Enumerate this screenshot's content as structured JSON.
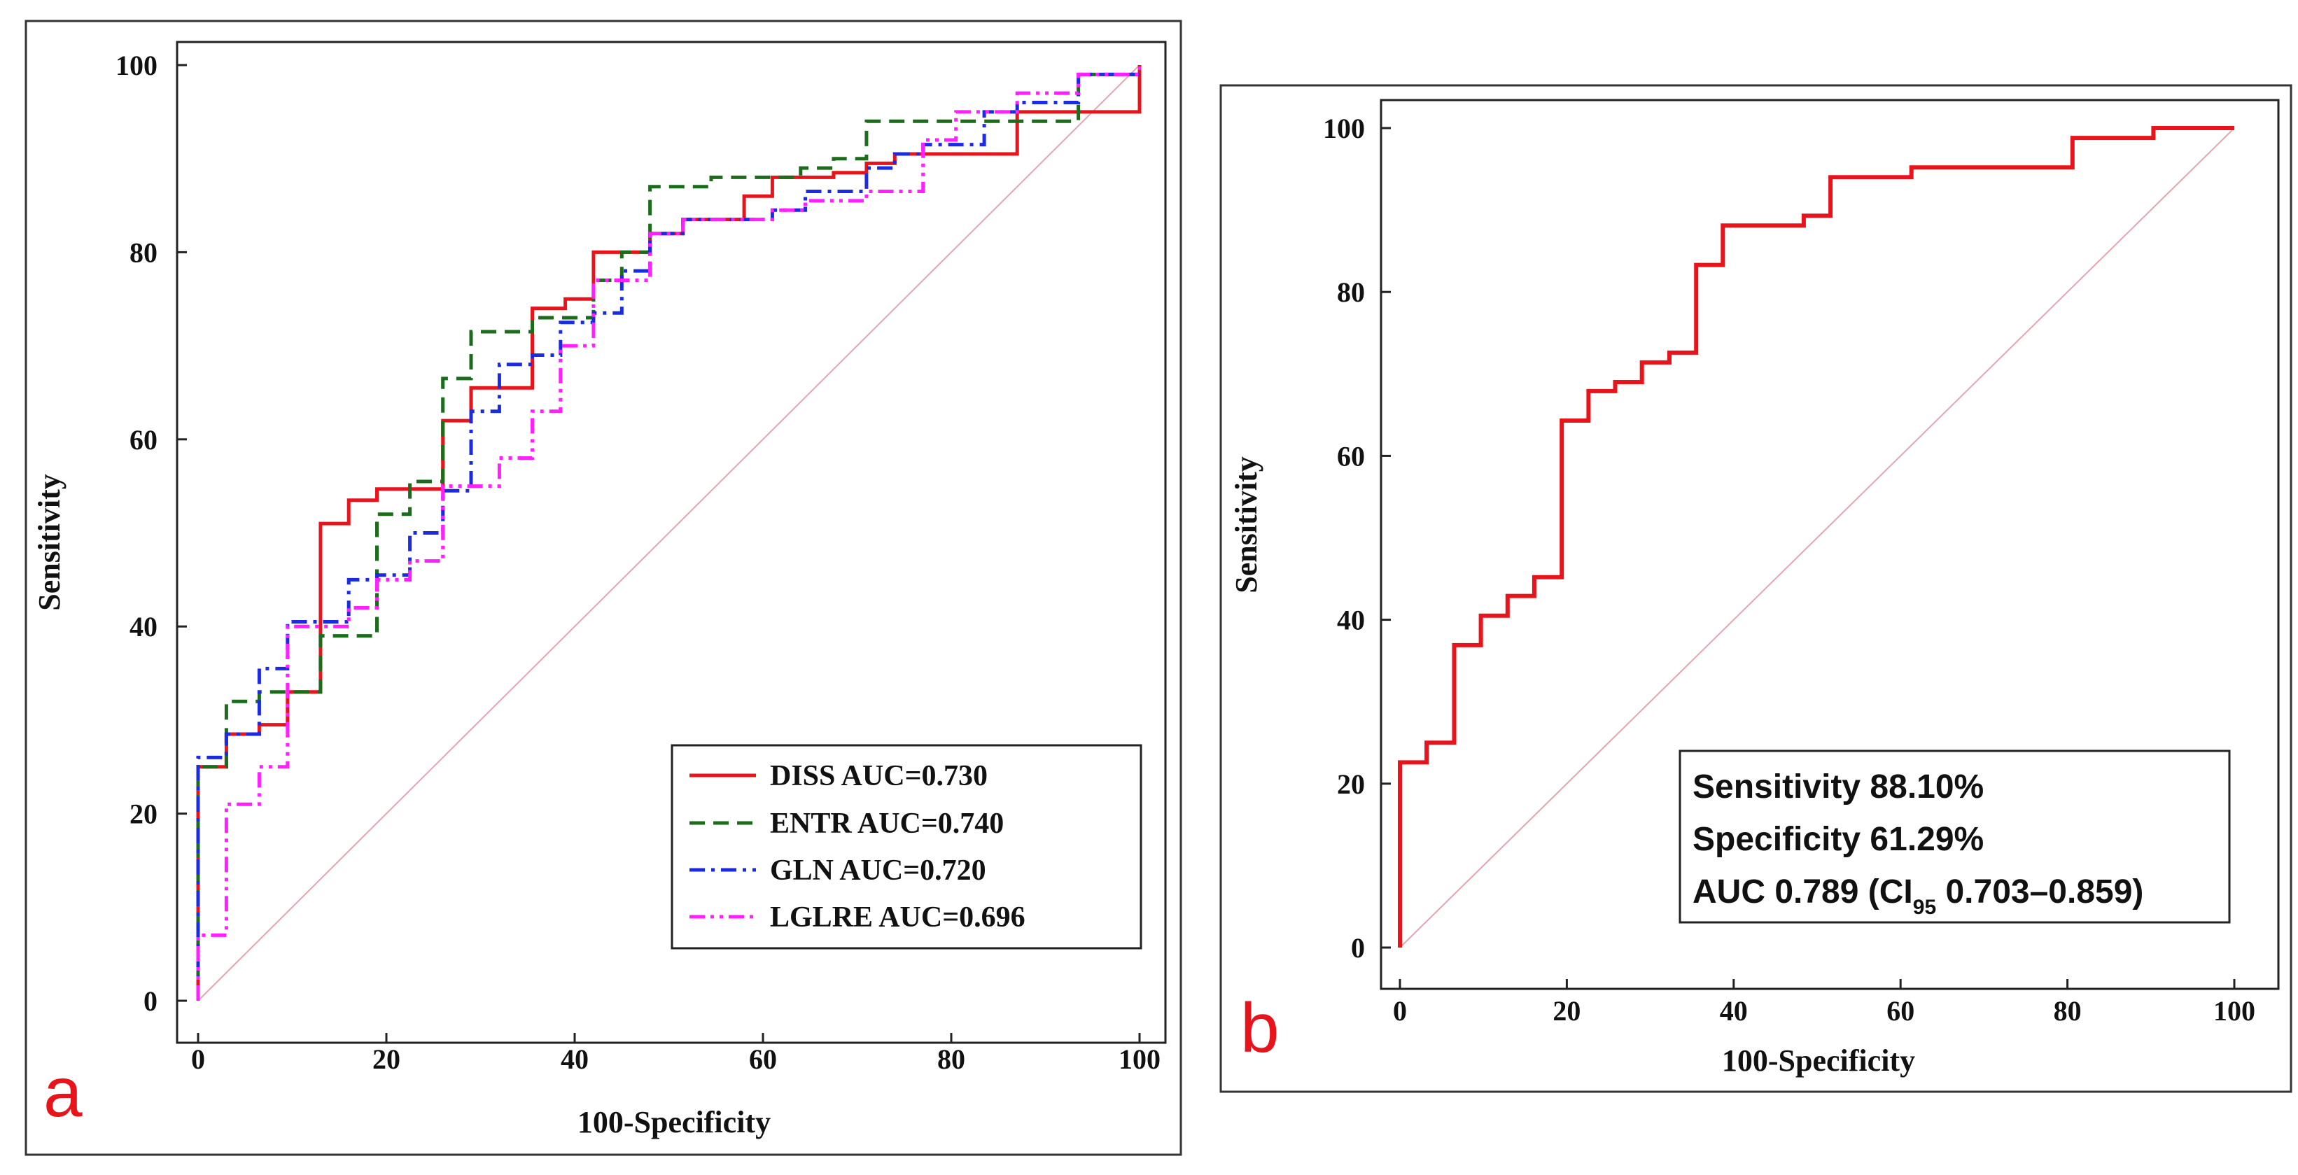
{
  "colors": {
    "diss": "#e8141b",
    "entr": "#1d6b1d",
    "gln": "#1a2be0",
    "lglre": "#ff1fff",
    "diagonal": "#e3a5b0",
    "panel_letter": "#e8141b"
  },
  "chart_data": [
    {
      "panel": "a",
      "type": "line",
      "xlabel": "100-Specificity",
      "ylabel": "Sensitivity",
      "xlim": [
        0,
        100
      ],
      "ylim": [
        0,
        100
      ],
      "xticks": [
        "0",
        "20",
        "40",
        "60",
        "80",
        "100"
      ],
      "yticks": [
        "0",
        "20",
        "40",
        "60",
        "80",
        "100"
      ],
      "legend_position": "lower-right",
      "series": [
        {
          "name": "DISS AUC=0.730",
          "style": "solid",
          "color_key": "diss",
          "points": [
            [
              0,
              0
            ],
            [
              0,
              25
            ],
            [
              3,
              25
            ],
            [
              3,
              28.5
            ],
            [
              6.5,
              28.5
            ],
            [
              6.5,
              29.5
            ],
            [
              9.5,
              29.5
            ],
            [
              9.5,
              33
            ],
            [
              13,
              33
            ],
            [
              13,
              51
            ],
            [
              16,
              51
            ],
            [
              16,
              53.5
            ],
            [
              19,
              53.5
            ],
            [
              19,
              54.7
            ],
            [
              26,
              54.7
            ],
            [
              26,
              62
            ],
            [
              29,
              62
            ],
            [
              29,
              65.5
            ],
            [
              35.5,
              65.5
            ],
            [
              35.5,
              74
            ],
            [
              39,
              74
            ],
            [
              39,
              75
            ],
            [
              42,
              75
            ],
            [
              42,
              80
            ],
            [
              48,
              80
            ],
            [
              48,
              82
            ],
            [
              51.5,
              82
            ],
            [
              51.5,
              83.5
            ],
            [
              58,
              83.5
            ],
            [
              58,
              86
            ],
            [
              61,
              86
            ],
            [
              61,
              88
            ],
            [
              67.5,
              88
            ],
            [
              67.5,
              88.5
            ],
            [
              71,
              88.5
            ],
            [
              71,
              89.5
            ],
            [
              74,
              89.5
            ],
            [
              74,
              90.5
            ],
            [
              87,
              90.5
            ],
            [
              87,
              95
            ],
            [
              100,
              95
            ],
            [
              100,
              100
            ]
          ]
        },
        {
          "name": "ENTR AUC=0.740",
          "style": "dashed",
          "color_key": "entr",
          "points": [
            [
              0,
              0
            ],
            [
              0,
              25
            ],
            [
              3,
              25
            ],
            [
              3,
              32
            ],
            [
              6.5,
              32
            ],
            [
              6.5,
              33
            ],
            [
              13,
              33
            ],
            [
              13,
              39
            ],
            [
              19,
              39
            ],
            [
              19,
              52
            ],
            [
              22.5,
              52
            ],
            [
              22.5,
              55.5
            ],
            [
              26,
              55.5
            ],
            [
              26,
              66.5
            ],
            [
              29,
              66.5
            ],
            [
              29,
              71.5
            ],
            [
              35.5,
              71.5
            ],
            [
              35.5,
              73
            ],
            [
              42,
              73
            ],
            [
              42,
              77
            ],
            [
              45,
              77
            ],
            [
              45,
              80
            ],
            [
              48,
              80
            ],
            [
              48,
              87
            ],
            [
              54.5,
              87
            ],
            [
              54.5,
              88
            ],
            [
              64,
              88
            ],
            [
              64,
              89
            ],
            [
              67.5,
              89
            ],
            [
              67.5,
              90
            ],
            [
              71,
              90
            ],
            [
              71,
              94
            ],
            [
              93.5,
              94
            ],
            [
              93.5,
              99
            ],
            [
              100,
              99
            ]
          ]
        },
        {
          "name": "GLN AUC=0.720",
          "style": "dashdot",
          "color_key": "gln",
          "points": [
            [
              0,
              0
            ],
            [
              0,
              26
            ],
            [
              3,
              26
            ],
            [
              3,
              28.5
            ],
            [
              6.5,
              28.5
            ],
            [
              6.5,
              35.5
            ],
            [
              9.5,
              35.5
            ],
            [
              9.5,
              40.5
            ],
            [
              16,
              40.5
            ],
            [
              16,
              45
            ],
            [
              19,
              45
            ],
            [
              19,
              45.5
            ],
            [
              22.5,
              45.5
            ],
            [
              22.5,
              50
            ],
            [
              26,
              50
            ],
            [
              26,
              54.5
            ],
            [
              29,
              54.5
            ],
            [
              29,
              63
            ],
            [
              32,
              63
            ],
            [
              32,
              68
            ],
            [
              35.5,
              68
            ],
            [
              35.5,
              69
            ],
            [
              38.5,
              69
            ],
            [
              38.5,
              72.5
            ],
            [
              42,
              72.5
            ],
            [
              42,
              73.5
            ],
            [
              45,
              73.5
            ],
            [
              45,
              78
            ],
            [
              48,
              78
            ],
            [
              48,
              82
            ],
            [
              51.5,
              82
            ],
            [
              51.5,
              83.5
            ],
            [
              61,
              83.5
            ],
            [
              61,
              84.5
            ],
            [
              64.5,
              84.5
            ],
            [
              64.5,
              86.5
            ],
            [
              71,
              86.5
            ],
            [
              71,
              89
            ],
            [
              74,
              89
            ],
            [
              74,
              90.5
            ],
            [
              77,
              90.5
            ],
            [
              77,
              91.5
            ],
            [
              83.5,
              91.5
            ],
            [
              83.5,
              95
            ],
            [
              87,
              95
            ],
            [
              87,
              96
            ],
            [
              93.5,
              96
            ],
            [
              93.5,
              99
            ],
            [
              100,
              99
            ]
          ]
        },
        {
          "name": "LGLRE AUC=0.696",
          "style": "dashdotdot",
          "color_key": "lglre",
          "points": [
            [
              0,
              0
            ],
            [
              0,
              7
            ],
            [
              3,
              7
            ],
            [
              3,
              21
            ],
            [
              6.5,
              21
            ],
            [
              6.5,
              25
            ],
            [
              9.5,
              25
            ],
            [
              9.5,
              40
            ],
            [
              16,
              40
            ],
            [
              16,
              42
            ],
            [
              19,
              42
            ],
            [
              19,
              45
            ],
            [
              22.5,
              45
            ],
            [
              22.5,
              47
            ],
            [
              26,
              47
            ],
            [
              26,
              55
            ],
            [
              32,
              55
            ],
            [
              32,
              58
            ],
            [
              35.5,
              58
            ],
            [
              35.5,
              63
            ],
            [
              38.5,
              63
            ],
            [
              38.5,
              70
            ],
            [
              42,
              70
            ],
            [
              42,
              77
            ],
            [
              48,
              77
            ],
            [
              48,
              82
            ],
            [
              51.5,
              82
            ],
            [
              51.5,
              83.5
            ],
            [
              61,
              83.5
            ],
            [
              61,
              84.5
            ],
            [
              64.5,
              84.5
            ],
            [
              64.5,
              85.5
            ],
            [
              71,
              85.5
            ],
            [
              71,
              86.5
            ],
            [
              77,
              86.5
            ],
            [
              77,
              92
            ],
            [
              80.5,
              92
            ],
            [
              80.5,
              95
            ],
            [
              87,
              95
            ],
            [
              87,
              97
            ],
            [
              93.5,
              97
            ],
            [
              93.5,
              99
            ],
            [
              100,
              99
            ],
            [
              100,
              100
            ]
          ]
        }
      ]
    },
    {
      "panel": "b",
      "type": "line",
      "xlabel": "100-Specificity",
      "ylabel": "Sensitivity",
      "xlim": [
        0,
        100
      ],
      "ylim": [
        0,
        100
      ],
      "xticks": [
        "0",
        "20",
        "40",
        "60",
        "80",
        "100"
      ],
      "yticks": [
        "0",
        "20",
        "40",
        "60",
        "80",
        "100"
      ],
      "series": [
        {
          "name": "ROC",
          "style": "solid",
          "color_key": "diss",
          "points": [
            [
              0,
              0
            ],
            [
              0,
              22.6
            ],
            [
              3.2,
              22.6
            ],
            [
              3.2,
              25
            ],
            [
              6.5,
              25
            ],
            [
              6.5,
              36.9
            ],
            [
              9.7,
              36.9
            ],
            [
              9.7,
              40.5
            ],
            [
              12.9,
              40.5
            ],
            [
              12.9,
              42.9
            ],
            [
              16.1,
              42.9
            ],
            [
              16.1,
              45.2
            ],
            [
              19.4,
              45.2
            ],
            [
              19.4,
              64.3
            ],
            [
              22.6,
              64.3
            ],
            [
              22.6,
              67.9
            ],
            [
              25.8,
              67.9
            ],
            [
              25.8,
              69
            ],
            [
              29,
              69
            ],
            [
              29,
              71.4
            ],
            [
              32.3,
              71.4
            ],
            [
              32.3,
              72.6
            ],
            [
              35.5,
              72.6
            ],
            [
              35.5,
              83.3
            ],
            [
              38.7,
              83.3
            ],
            [
              38.7,
              88.1
            ],
            [
              48.4,
              88.1
            ],
            [
              48.4,
              89.3
            ],
            [
              51.6,
              89.3
            ],
            [
              51.6,
              94
            ],
            [
              61.3,
              94
            ],
            [
              61.3,
              95.2
            ],
            [
              80.6,
              95.2
            ],
            [
              80.6,
              98.8
            ],
            [
              90.3,
              98.8
            ],
            [
              90.3,
              100
            ],
            [
              100,
              100
            ]
          ]
        }
      ],
      "annotation": {
        "sensitivity": "Sensitivity 88.10%",
        "specificity": "Specificity 61.29%",
        "auc_prefix": "AUC 0.789 (CI",
        "auc_sub": "95",
        "auc_suffix": " 0.703–0.859)"
      }
    }
  ]
}
